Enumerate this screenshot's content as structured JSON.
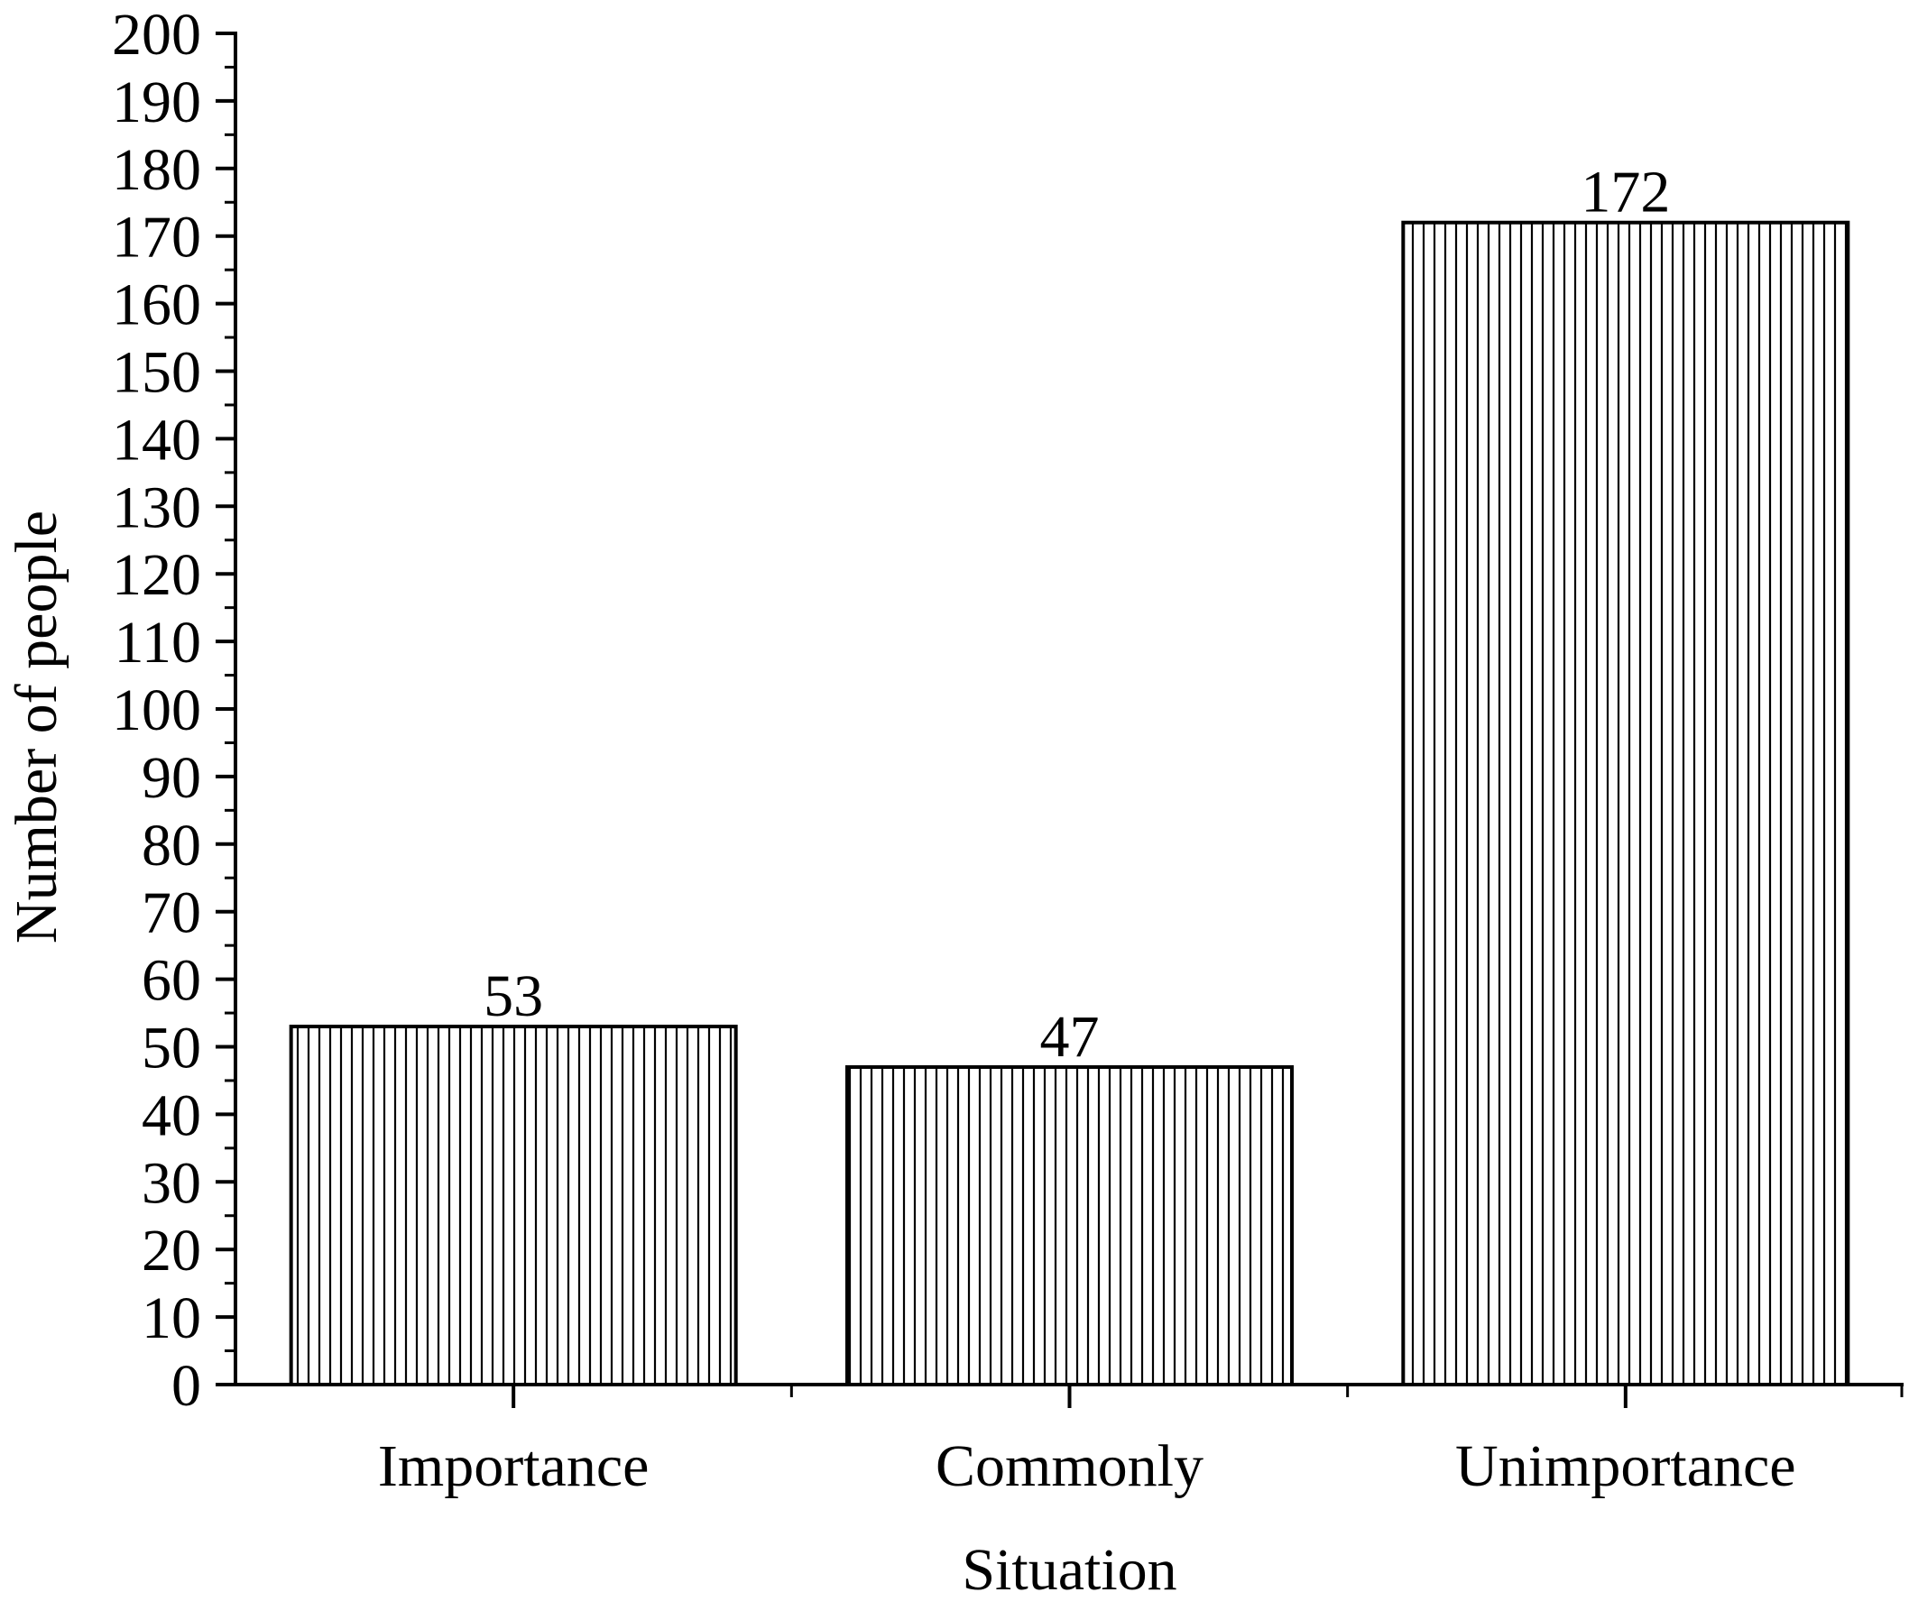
{
  "chart_data": {
    "type": "bar",
    "categories": [
      "Importance",
      "Commonly",
      "Unimportance"
    ],
    "values": [
      53,
      47,
      172
    ],
    "data_labels": [
      "53",
      "47",
      "172"
    ],
    "title": "",
    "xlabel": "Situation",
    "ylabel": "Number of people",
    "ylim": [
      0,
      200
    ],
    "y_major_step": 10,
    "y_ticks": [
      "0",
      "10",
      "20",
      "30",
      "40",
      "50",
      "60",
      "70",
      "80",
      "90",
      "100",
      "110",
      "120",
      "130",
      "140",
      "150",
      "160",
      "170",
      "180",
      "190",
      "200"
    ],
    "grid": false,
    "legend": "none",
    "bar_fill": "vertical-hatch",
    "colors": {
      "stroke": "#000000",
      "fill": "#ffffff"
    }
  }
}
